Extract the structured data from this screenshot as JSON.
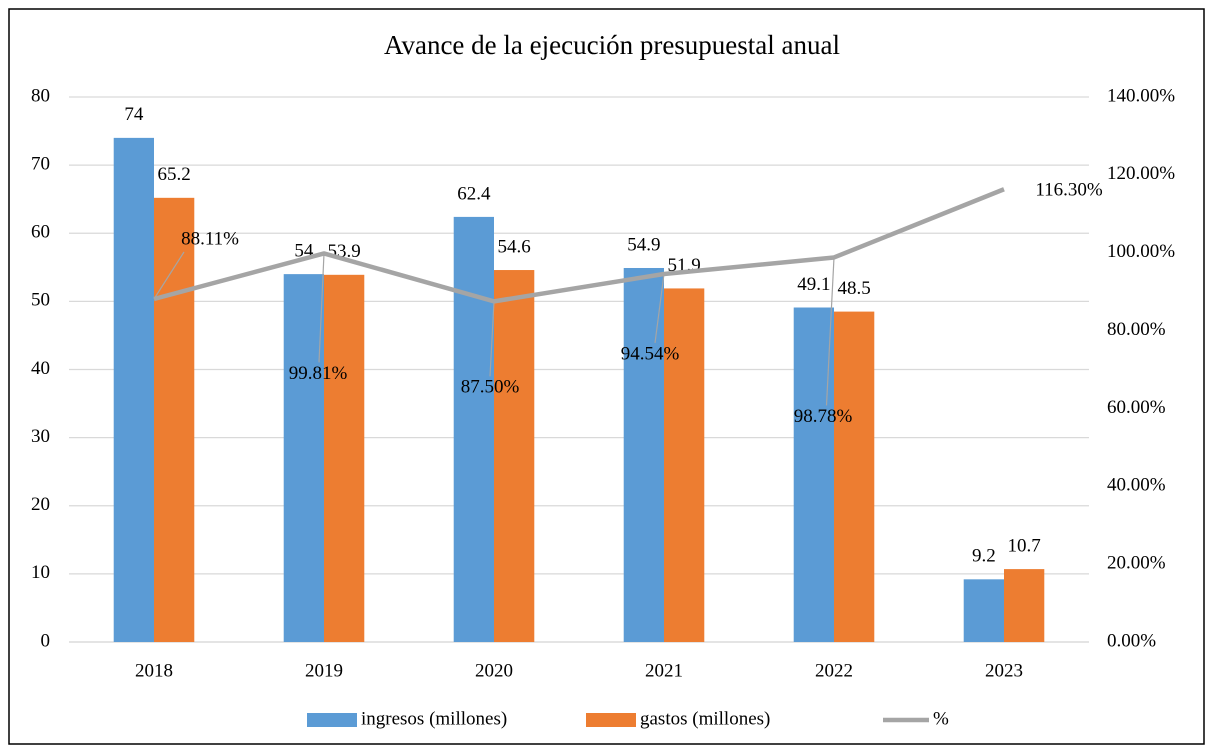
{
  "chart_data": {
    "type": "bar",
    "title": "Avance de la ejecución presupuestal anual",
    "categories": [
      "2018",
      "2019",
      "2020",
      "2021",
      "2022",
      "2023"
    ],
    "series": [
      {
        "name": "ingresos (millones)",
        "color": "#5b9bd5",
        "values": [
          74,
          54,
          62.4,
          54.9,
          49.1,
          9.2
        ]
      },
      {
        "name": "gastos (millones)",
        "color": "#ed7d31",
        "values": [
          65.2,
          53.9,
          54.6,
          51.9,
          48.5,
          10.7
        ]
      },
      {
        "name": "%",
        "type": "line",
        "axis": "y2",
        "color": "#a5a5a5",
        "values": [
          88.11,
          99.81,
          87.5,
          94.54,
          98.78,
          116.3
        ],
        "value_labels": [
          "88.11%",
          "99.81%",
          "87.50%",
          "94.54%",
          "98.78%",
          "116.30%"
        ]
      }
    ],
    "ylim": [
      0,
      80
    ],
    "yticks": [
      0,
      10,
      20,
      30,
      40,
      50,
      60,
      70,
      80
    ],
    "y2lim": [
      0,
      140
    ],
    "y2ticks": [
      {
        "value": 0,
        "label": "0.00%"
      },
      {
        "value": 20,
        "label": "20.00%"
      },
      {
        "value": 40,
        "label": "40.00%"
      },
      {
        "value": 60,
        "label": "60.00%"
      },
      {
        "value": 80,
        "label": "80.00%"
      },
      {
        "value": 100,
        "label": "100.00%"
      },
      {
        "value": 120,
        "label": "120.00%"
      },
      {
        "value": 140,
        "label": "140.00%"
      }
    ],
    "grid": true,
    "legend": "bottom"
  }
}
